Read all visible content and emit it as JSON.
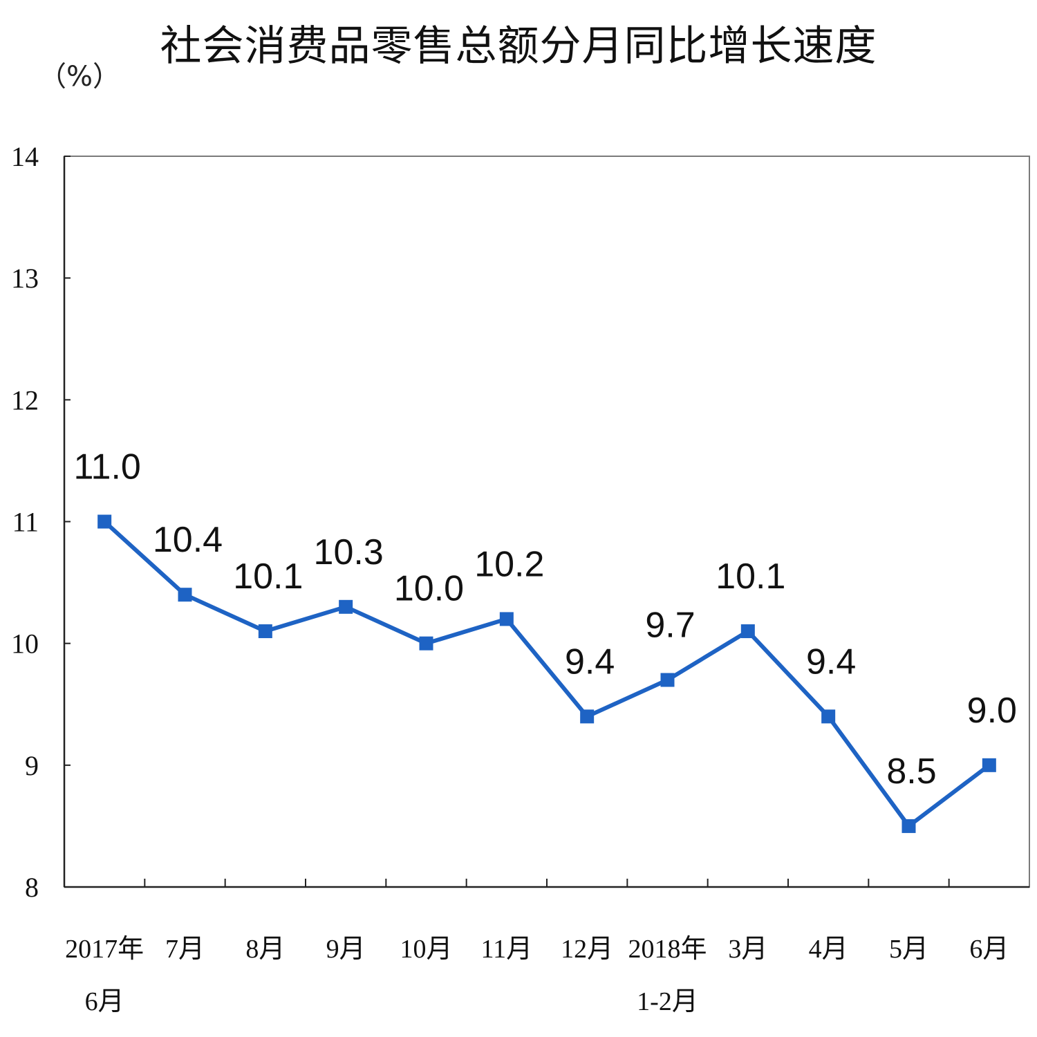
{
  "chart_data": {
    "type": "line",
    "title": "社会消费品零售总额分月同比增长速度",
    "ylabel": "（%）",
    "xlabel": "",
    "ylim": [
      8,
      14
    ],
    "yticks": [
      8,
      9,
      10,
      11,
      12,
      13,
      14
    ],
    "categories": [
      [
        "2017年",
        "6月"
      ],
      [
        "7月"
      ],
      [
        "8月"
      ],
      [
        "9月"
      ],
      [
        "10月"
      ],
      [
        "11月"
      ],
      [
        "12月"
      ],
      [
        "2018年",
        "1-2月"
      ],
      [
        "3月"
      ],
      [
        "4月"
      ],
      [
        "5月"
      ],
      [
        "6月"
      ]
    ],
    "series": [
      {
        "name": "同比增长速度",
        "values": [
          11.0,
          10.4,
          10.1,
          10.3,
          10.0,
          10.2,
          9.4,
          9.7,
          10.1,
          9.4,
          8.5,
          9.0
        ],
        "labels": [
          "11.0",
          "10.4",
          "10.1",
          "10.3",
          "10.0",
          "10.2",
          "9.4",
          "9.7",
          "10.1",
          "9.4",
          "8.5",
          "9.0"
        ],
        "color": "#1e63c4",
        "marker": "square"
      }
    ],
    "grid": false
  }
}
